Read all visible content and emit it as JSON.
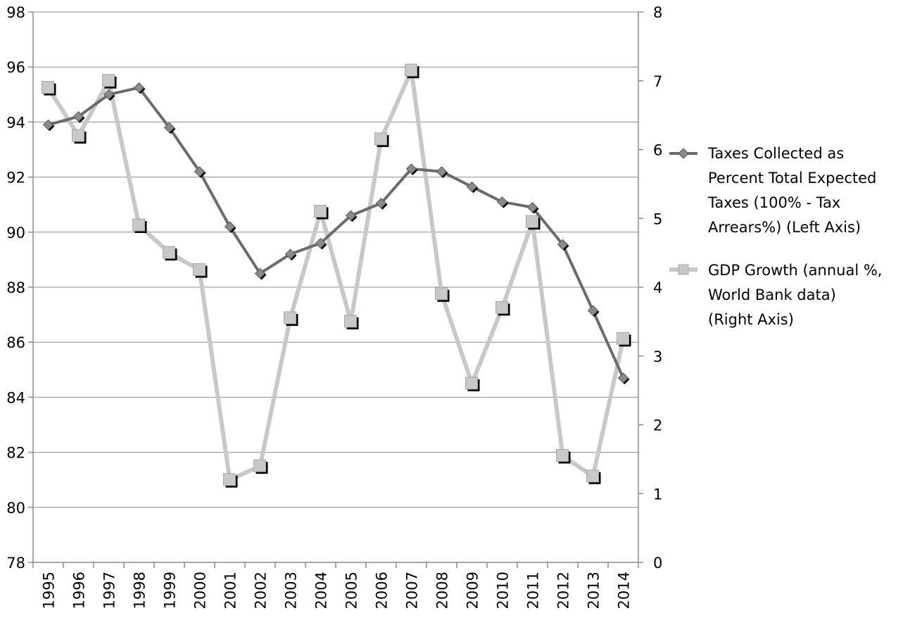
{
  "chart_data": {
    "type": "line",
    "title": "",
    "categories": [
      "1995",
      "1996",
      "1997",
      "1998",
      "1999",
      "2000",
      "2001",
      "2002",
      "2003",
      "2004",
      "2005",
      "2006",
      "2007",
      "2008",
      "2009",
      "2010",
      "2011",
      "2012",
      "2013",
      "2014"
    ],
    "y_left": {
      "lim": [
        78,
        98
      ],
      "ticks": [
        "78",
        "80",
        "82",
        "84",
        "86",
        "88",
        "90",
        "92",
        "94",
        "96",
        "98"
      ],
      "tick_values": [
        78,
        80,
        82,
        84,
        86,
        88,
        90,
        92,
        94,
        96,
        98
      ]
    },
    "y_right": {
      "lim": [
        0,
        8
      ],
      "ticks": [
        "0",
        "1",
        "2",
        "3",
        "4",
        "5",
        "6",
        "7",
        "8"
      ],
      "tick_values": [
        0,
        1,
        2,
        3,
        4,
        5,
        6,
        7,
        8
      ]
    },
    "grid": true,
    "legend_position": "right",
    "series": [
      {
        "name": "Taxes Collected as Percent Total Expected Taxes (100% - Tax Arrears%) (Left Axis)",
        "legend_lines": [
          "Taxes Collected as",
          "Percent Total Expected",
          "Taxes (100% - Tax",
          "Arrears%) (Left Axis)"
        ],
        "axis": "left",
        "marker": "diamond",
        "color": "#6b6b6b",
        "values": [
          93.9,
          94.2,
          95.0,
          95.25,
          93.8,
          92.2,
          90.2,
          88.5,
          89.2,
          89.6,
          90.6,
          91.05,
          92.3,
          92.2,
          91.65,
          91.1,
          90.9,
          89.55,
          87.15,
          84.7
        ]
      },
      {
        "name": "GDP Growth (annual %, World Bank data) (Right Axis)",
        "legend_lines": [
          "GDP Growth (annual %,",
          "World Bank data)",
          "(Right Axis)"
        ],
        "axis": "right",
        "marker": "square",
        "color": "#c8c8c8",
        "values": [
          6.9,
          6.2,
          7.0,
          4.9,
          4.5,
          4.25,
          1.2,
          1.4,
          3.55,
          5.1,
          3.5,
          6.15,
          7.15,
          3.9,
          2.6,
          3.7,
          4.95,
          1.55,
          1.25,
          3.25
        ]
      }
    ]
  }
}
